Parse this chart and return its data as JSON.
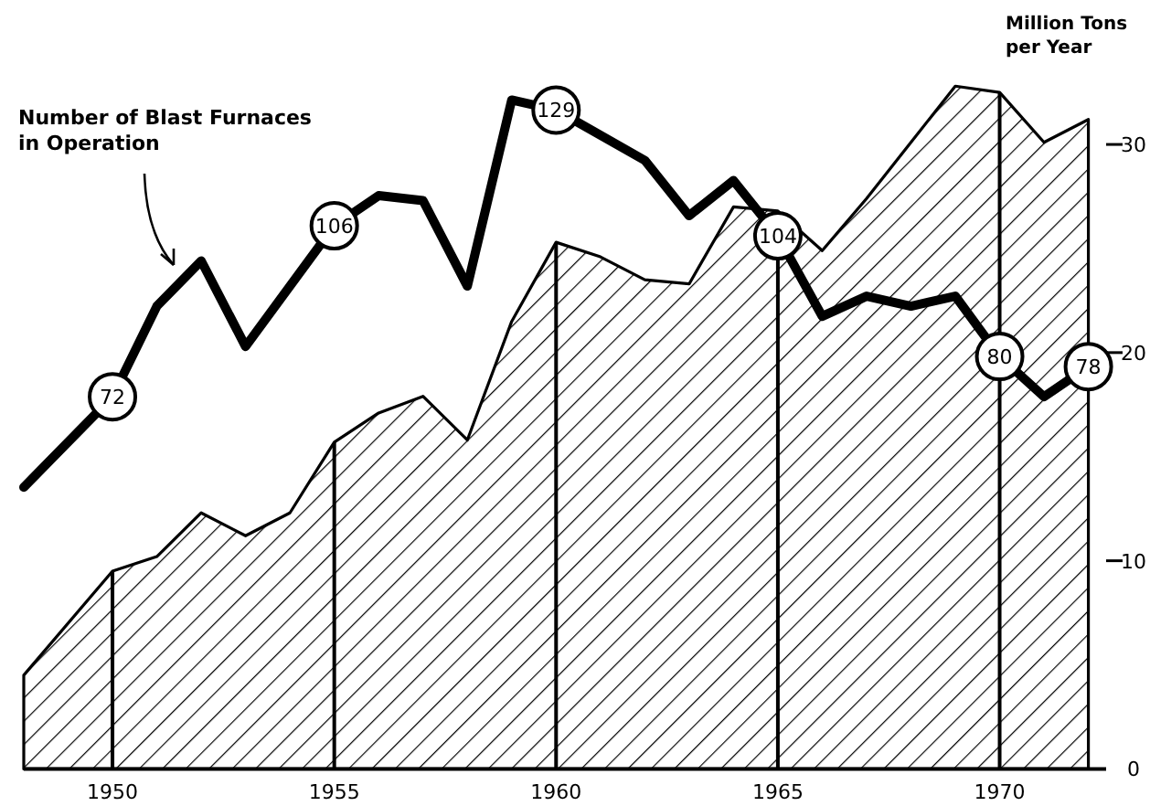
{
  "chart_data": {
    "type": "area",
    "ylabel": "Million Tons per Year",
    "xlim": [
      1948,
      1972.4
    ],
    "xticks": [
      1950,
      1955,
      1960,
      1965,
      1970
    ],
    "ylim": [
      0,
      36
    ],
    "yticks": [
      0,
      10,
      20,
      30
    ],
    "y2lim": [
      -2,
      147
    ],
    "grid": "x",
    "series": [
      {
        "color": "#000000",
        "x": [
          1948,
          1950,
          1951,
          1952,
          1953,
          1954,
          1955,
          1956,
          1957,
          1958,
          1959,
          1960,
          1961,
          1962,
          1963,
          1964,
          1965,
          1966,
          1967,
          1968,
          1969,
          1970,
          1971,
          1972
        ],
        "values": [
          4.5,
          9.5,
          10.2,
          12.3,
          11.2,
          12.3,
          15.7,
          17.1,
          17.9,
          15.8,
          21.5,
          25.3,
          24.6,
          23.5,
          23.3,
          27.0,
          26.8,
          24.9,
          27.4,
          30.1,
          32.8,
          32.5,
          30.1,
          31.2
        ]
      },
      {
        "type": "line",
        "axis": "y2",
        "name": "Number of Blast Furnaces in Operation",
        "color": "#000000",
        "x": [
          1948,
          1950,
          1951,
          1952,
          1953,
          1955,
          1956,
          1957,
          1958,
          1959,
          1960,
          1962,
          1963,
          1964,
          1965,
          1966,
          1967,
          1968,
          1969,
          1970,
          1971,
          1972
        ],
        "values": [
          54,
          72,
          90,
          99,
          82,
          106,
          112,
          111,
          94,
          131,
          129,
          119,
          108,
          115,
          104,
          88,
          92,
          90,
          92,
          80,
          72,
          78
        ],
        "value_labels": [
          null,
          "72",
          null,
          null,
          null,
          "106",
          null,
          null,
          null,
          null,
          "129",
          null,
          null,
          null,
          "104",
          null,
          null,
          null,
          null,
          "80",
          null,
          "78"
        ]
      }
    ]
  }
}
